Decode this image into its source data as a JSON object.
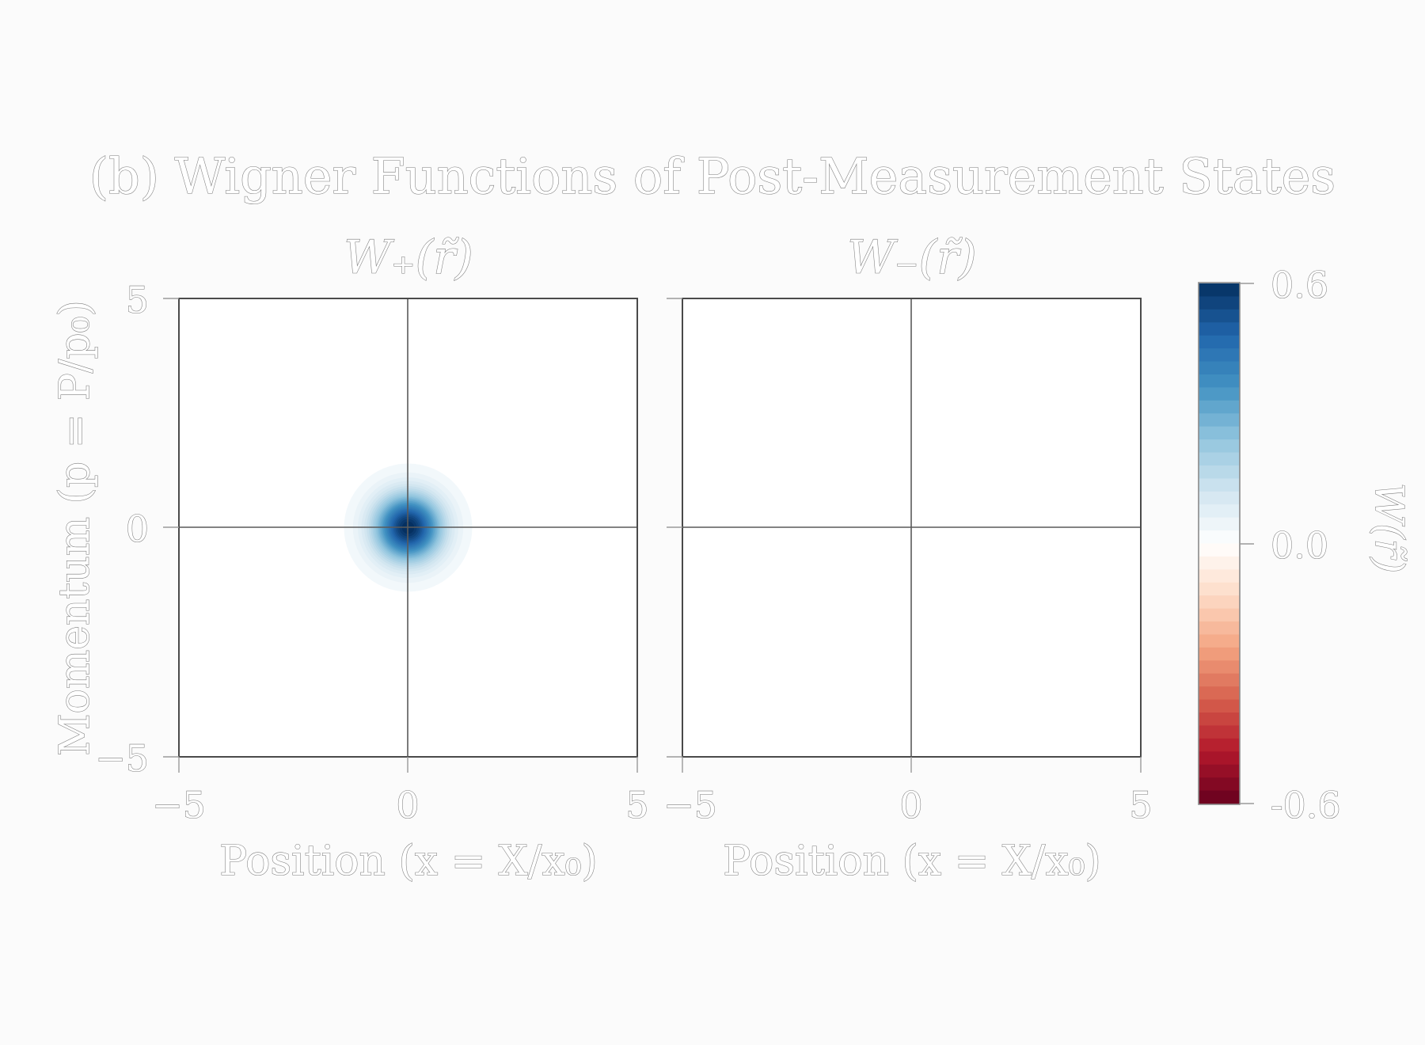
{
  "figure": {
    "title": "(b) Wigner Functions of Post-Measurement States"
  },
  "panels": [
    {
      "title": "W₊(r̃)",
      "xlabel": "Position (x = X/x₀)"
    },
    {
      "title": "W₋(r̃)",
      "xlabel": "Position (x = X/x₀)"
    }
  ],
  "shared": {
    "ylabel": "Momentum (p = P/p₀)"
  },
  "colorbar": {
    "label": "W(r̃)",
    "tick_labels": [
      "0.6",
      "0.0",
      "-0.6"
    ],
    "colormap": "RdBu",
    "range": [
      -0.6,
      0.6
    ]
  },
  "chart_data": [
    {
      "type": "heatmap",
      "title": "W₊(r̃)",
      "xlabel": "Position (x = X/x₀)",
      "ylabel": "Momentum (p = P/p₀)",
      "xlim": [
        -5,
        5
      ],
      "ylim": [
        -5,
        5
      ],
      "xticks": [
        "−5",
        "0",
        "5"
      ],
      "yticks": [
        "5",
        "0",
        "−5"
      ],
      "grid": "axes lines at x=0 and p=0",
      "distribution": {
        "shape": "gaussian",
        "center": [
          0,
          0
        ],
        "peak": 0.6,
        "support_radius": 1.6
      }
    },
    {
      "type": "heatmap",
      "title": "W₋(r̃)",
      "xlabel": "Position (x = X/x₀)",
      "xlim": [
        -5,
        5
      ],
      "ylim": [
        -5,
        5
      ],
      "xticks": [
        "−5",
        "0",
        "5"
      ],
      "grid": "axes lines at x=0 and p=0",
      "distribution": {
        "shape": "zero",
        "peak": 0.0
      }
    }
  ]
}
